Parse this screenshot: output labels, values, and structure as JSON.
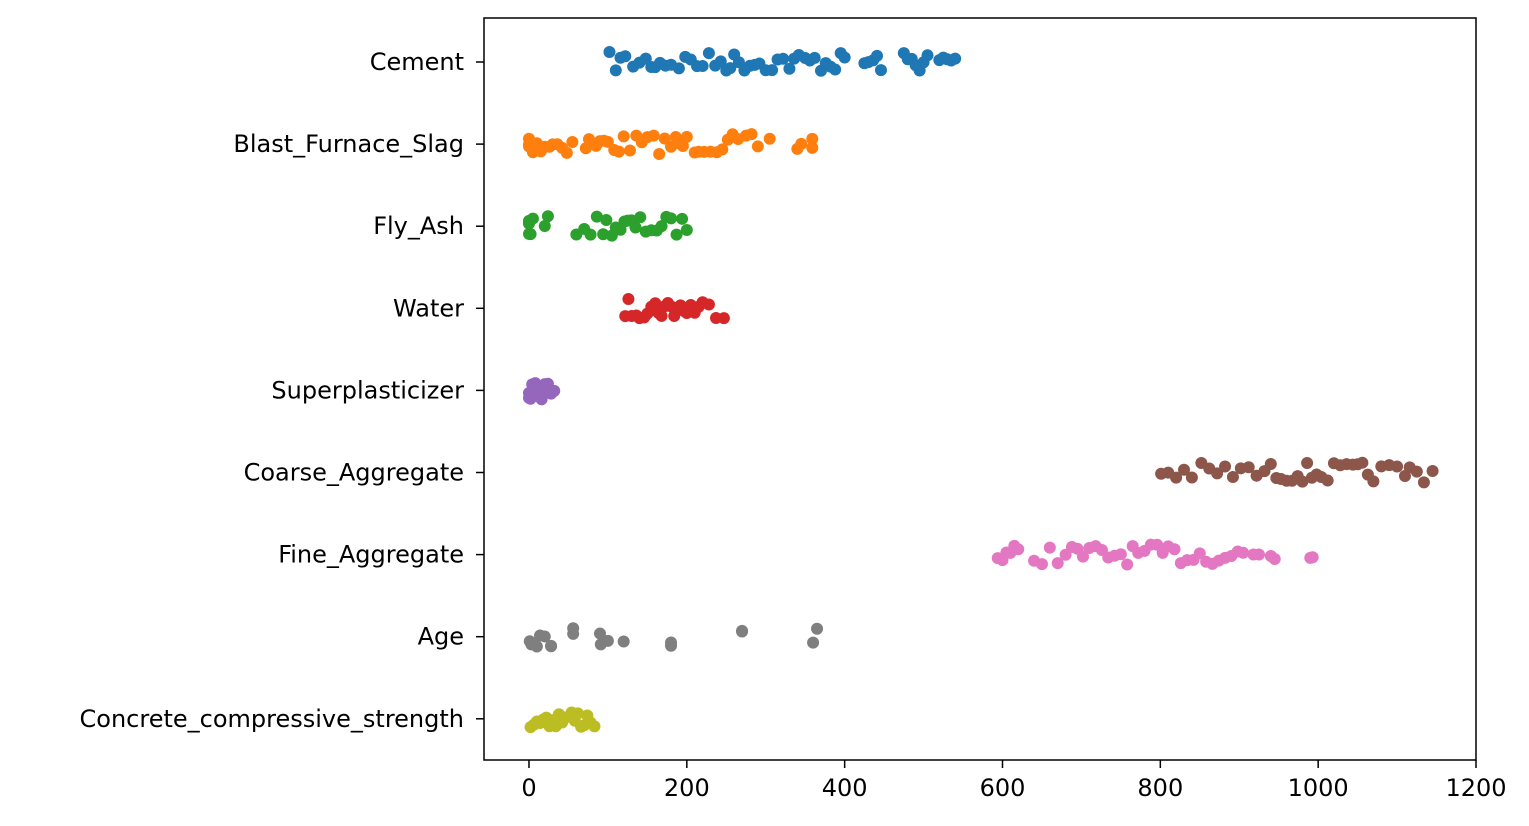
{
  "chart_data": {
    "type": "scatter",
    "subtype": "strip",
    "title": "",
    "xlabel": "",
    "ylabel": "",
    "xlim": [
      -57,
      1200
    ],
    "xticks": [
      0,
      200,
      400,
      600,
      800,
      1000,
      1200
    ],
    "xtick_labels": [
      "0",
      "200",
      "400",
      "600",
      "800",
      "1000",
      "1200"
    ],
    "grid": false,
    "legend": "none",
    "categories": [
      "Cement",
      "Blast_Furnace_Slag",
      "Fly_Ash",
      "Water",
      "Superplasticizer",
      "Coarse_Aggregate",
      "Fine_Aggregate",
      "Age",
      "Concrete_compressive_strength"
    ],
    "series": [
      {
        "category": "Cement",
        "color": "#1f77b4",
        "range": [
          102,
          540
        ],
        "x": [
          102,
          110,
          116,
          122,
          132,
          140,
          148,
          155,
          160,
          166,
          173,
          180,
          190,
          198,
          205,
          213,
          220,
          228,
          236,
          243,
          250,
          255,
          260,
          266,
          273,
          280,
          286,
          292,
          300,
          308,
          315,
          322,
          330,
          336,
          342,
          350,
          356,
          362,
          370,
          376,
          382,
          388,
          395,
          400,
          425,
          430,
          436,
          441,
          446,
          475,
          480,
          485,
          490,
          495,
          500,
          505,
          520,
          525,
          530,
          535,
          540
        ]
      },
      {
        "category": "Blast_Furnace_Slag",
        "color": "#ff7f0e",
        "range": [
          0,
          359
        ],
        "x": [
          0,
          0,
          0,
          5,
          10,
          15,
          20,
          26,
          30,
          36,
          42,
          48,
          55,
          72,
          76,
          85,
          90,
          95,
          100,
          108,
          114,
          120,
          128,
          136,
          143,
          150,
          158,
          165,
          172,
          180,
          186,
          190,
          195,
          200,
          210,
          215,
          222,
          230,
          238,
          245,
          252,
          258,
          265,
          275,
          282,
          290,
          305,
          340,
          345,
          359,
          359
        ]
      },
      {
        "category": "Fly_Ash",
        "color": "#2ca02c",
        "range": [
          0,
          200
        ],
        "x": [
          0,
          0,
          0,
          2,
          5,
          20,
          24,
          60,
          70,
          78,
          86,
          94,
          98,
          105,
          110,
          116,
          121,
          125,
          130,
          135,
          141,
          148,
          155,
          162,
          168,
          174,
          180,
          187,
          194,
          200
        ]
      },
      {
        "category": "Water",
        "color": "#d62728",
        "range": [
          122,
          247
        ],
        "x": [
          122,
          126,
          130,
          136,
          140,
          146,
          150,
          155,
          160,
          164,
          168,
          172,
          176,
          180,
          184,
          188,
          192,
          196,
          200,
          205,
          210,
          215,
          220,
          228,
          237,
          247
        ]
      },
      {
        "category": "Superplasticizer",
        "color": "#9467bd",
        "range": [
          0,
          32
        ],
        "x": [
          0,
          0,
          2,
          4,
          6,
          8,
          10,
          12,
          14,
          16,
          18,
          20,
          22,
          24,
          28,
          32
        ]
      },
      {
        "category": "Coarse_Aggregate",
        "color": "#8c564b",
        "range": [
          801,
          1145
        ],
        "x": [
          801,
          810,
          820,
          830,
          840,
          852,
          862,
          872,
          882,
          892,
          902,
          912,
          922,
          932,
          940,
          947,
          953,
          960,
          967,
          974,
          980,
          986,
          992,
          998,
          1004,
          1012,
          1020,
          1028,
          1036,
          1044,
          1050,
          1056,
          1063,
          1070,
          1080,
          1090,
          1100,
          1110,
          1116,
          1125,
          1134,
          1145
        ]
      },
      {
        "category": "Fine_Aggregate",
        "color": "#e377c2",
        "range": [
          594,
          993
        ],
        "x": [
          594,
          600,
          605,
          610,
          615,
          620,
          640,
          650,
          660,
          670,
          680,
          688,
          695,
          702,
          710,
          718,
          726,
          734,
          742,
          750,
          758,
          765,
          772,
          780,
          788,
          796,
          803,
          810,
          818,
          826,
          834,
          842,
          850,
          858,
          866,
          874,
          882,
          890,
          898,
          905,
          918,
          925,
          940,
          945,
          990,
          993
        ]
      },
      {
        "category": "Age",
        "color": "#7f7f7f",
        "range": [
          1,
          365
        ],
        "x": [
          1,
          3,
          7,
          10,
          14,
          20,
          28,
          28,
          56,
          56,
          90,
          91,
          100,
          120,
          180,
          180,
          270,
          270,
          360,
          365
        ]
      },
      {
        "category": "Concrete_compressive_strength",
        "color": "#bcbd22",
        "range": [
          2,
          83
        ],
        "x": [
          2,
          6,
          10,
          14,
          18,
          22,
          26,
          30,
          34,
          38,
          42,
          46,
          50,
          54,
          58,
          62,
          66,
          70,
          74,
          78,
          83
        ]
      }
    ]
  }
}
